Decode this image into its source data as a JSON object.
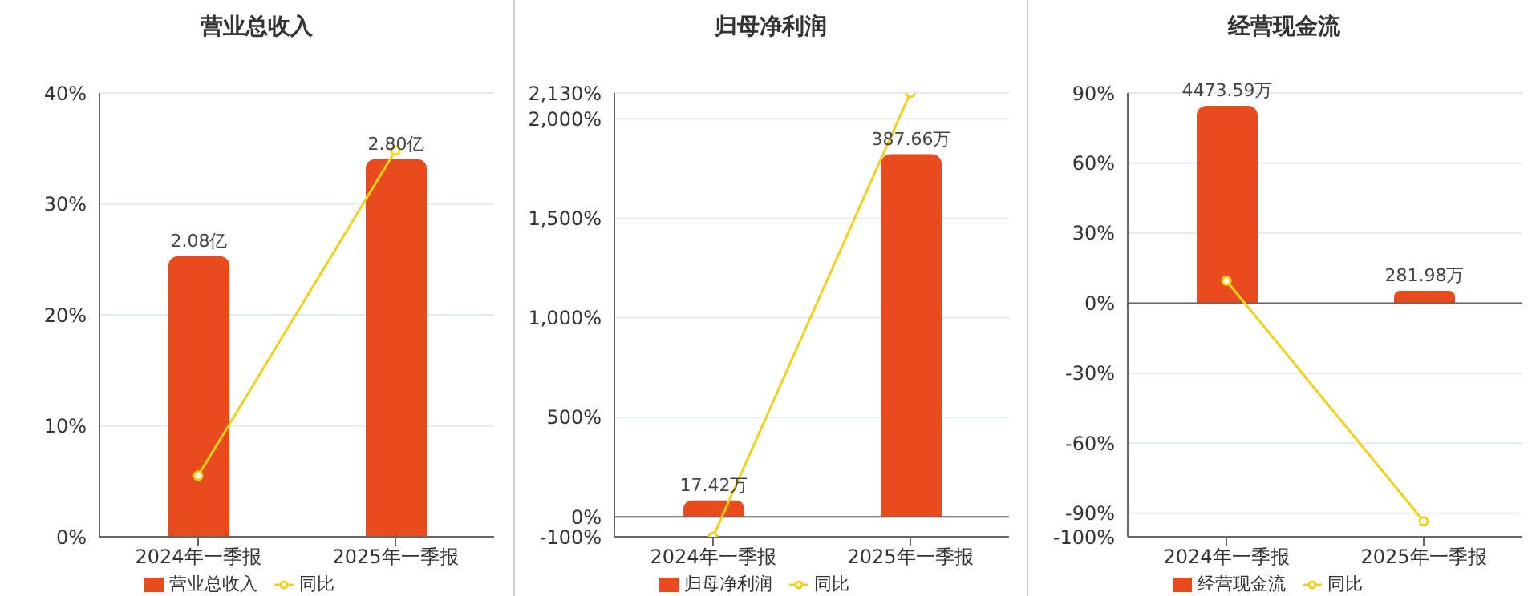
{
  "chart_data": [
    {
      "type": "bar",
      "title": "营业总收入",
      "categories": [
        "2024年一季报",
        "2025年一季报"
      ],
      "series": [
        {
          "name": "营业总收入",
          "axis": "y2",
          "color": "#e84c1c",
          "values": [
            2.08,
            2.8
          ],
          "value_labels": [
            "2.08亿",
            "2.80亿"
          ]
        },
        {
          "name": "同比",
          "type": "line",
          "color": "#f2d01e",
          "values": [
            5.5,
            34.8
          ]
        }
      ],
      "ylim": [
        0,
        40
      ],
      "yticks": [
        {
          "value": 0,
          "label": "0%"
        },
        {
          "value": 10,
          "label": "10%"
        },
        {
          "value": 20,
          "label": "20%"
        },
        {
          "value": 30,
          "label": "30%"
        },
        {
          "value": 40,
          "label": "40%"
        }
      ],
      "y2lim": [
        0,
        3.29
      ],
      "tick_labels": "xy",
      "grid": "y",
      "legend": "bottom",
      "marker": "circle"
    },
    {
      "type": "bar",
      "title": "归母净利润",
      "categories": [
        "2024年一季报",
        "2025年一季报"
      ],
      "series": [
        {
          "name": "归母净利润",
          "axis": "y2",
          "color": "#e84c1c",
          "values": [
            17.42,
            387.66
          ],
          "value_labels": [
            "17.42万",
            "387.66万"
          ]
        },
        {
          "name": "同比",
          "type": "line",
          "color": "#f2d01e",
          "values": [
            -100,
            2130
          ]
        }
      ],
      "ylim": [
        -100,
        2130
      ],
      "yticks": [
        {
          "value": -100,
          "label": "-100%"
        },
        {
          "value": 0,
          "label": "0%"
        },
        {
          "value": 500,
          "label": "500%"
        },
        {
          "value": 1000,
          "label": "1,000%"
        },
        {
          "value": 1500,
          "label": "1,500%"
        },
        {
          "value": 2000,
          "label": "2,000%"
        },
        {
          "value": 2130,
          "label": "2,130%"
        }
      ],
      "y2lim": [
        -21.28,
        453.3
      ],
      "tick_labels": "xy",
      "grid": "y",
      "legend": "bottom",
      "marker": "circle"
    },
    {
      "type": "bar",
      "title": "经营现金流",
      "categories": [
        "2024年一季报",
        "2025年一季报"
      ],
      "series": [
        {
          "name": "经营现金流",
          "axis": "y2",
          "color": "#e84c1c",
          "values": [
            4473.59,
            281.98
          ],
          "value_labels": [
            "4473.59万",
            "281.98万"
          ]
        },
        {
          "name": "同比",
          "type": "line",
          "color": "#f2d01e",
          "values": [
            9.6,
            -93.4
          ]
        }
      ],
      "ylim": [
        -100,
        90
      ],
      "yticks": [
        {
          "value": -100,
          "label": "-100%"
        },
        {
          "value": -90,
          "label": "-90%"
        },
        {
          "value": -60,
          "label": "-60%"
        },
        {
          "value": -30,
          "label": "-30%"
        },
        {
          "value": 0,
          "label": "0%"
        },
        {
          "value": 30,
          "label": "30%"
        },
        {
          "value": 60,
          "label": "60%"
        },
        {
          "value": 90,
          "label": "90%"
        }
      ],
      "y2lim": [
        -5294,
        4765
      ],
      "tick_labels": "xy",
      "grid": "y",
      "legend": "bottom",
      "marker": "circle"
    }
  ]
}
